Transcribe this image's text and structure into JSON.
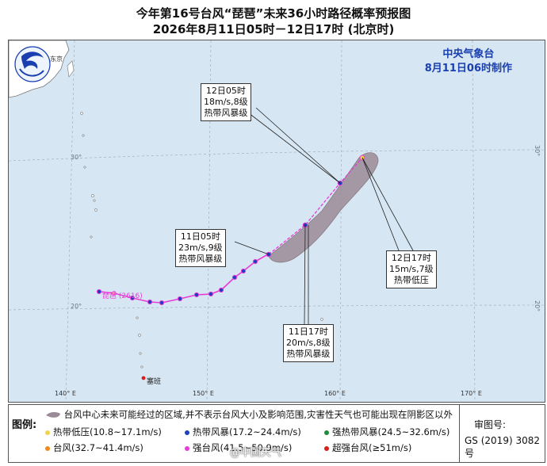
{
  "title_line1": "今年第16号台风“琵琶”未来36小时路径概率预报图",
  "title_line2": "2026年8月11日05时－12日17时 (北京时)",
  "agency_name": "中央气象台",
  "agency_time": "8月11日06时制作",
  "logo_label": "东京",
  "map_labels": {
    "typhoon_name": "琵琶 (2616)",
    "saipan": "塞班",
    "lat_30": "30°",
    "lat_20": "20°",
    "lon_140": "140° E",
    "lon_150": "150° E",
    "lon_160": "160° E",
    "lon_170": "170° E"
  },
  "callouts": {
    "c1205": {
      "time": "12日05时",
      "wind": "18m/s,8级",
      "level": "热带风暴级"
    },
    "c1105": {
      "time": "11日05时",
      "wind": "23m/s,9级",
      "level": "热带风暴级"
    },
    "c1117": {
      "time": "11日17时",
      "wind": "20m/s,8级",
      "level": "热带风暴级"
    },
    "c1217": {
      "time": "12日17时",
      "wind": "15m/s,7级",
      "level": "热带低压"
    }
  },
  "legend": {
    "title": "图例:",
    "cone_text": "台风中心未来可能经过的区域,并不表示台风大小及影响范围,灾害性天气也可能出现在阴影区以外",
    "items": [
      {
        "label": "热带低压(10.8~17.1m/s)",
        "color": "#f0d34a"
      },
      {
        "label": "热带风暴(17.2~24.4m/s)",
        "color": "#1f3fbf"
      },
      {
        "label": "强热带风暴(24.5~32.6m/s)",
        "color": "#1e8c3a"
      },
      {
        "label": "台风(32.7~41.4m/s)",
        "color": "#f08a1e"
      },
      {
        "label": "强台风(41.5~50.9m/s)",
        "color": "#e83bd8"
      },
      {
        "label": "超强台风(≥51m/s)",
        "color": "#d81e1e"
      }
    ],
    "review_label": "审图号:",
    "review_code": "GS (2019) 3082号"
  },
  "watermark": "@中国天气",
  "colors": {
    "ocean": "#d6e6f2",
    "land": "#ffffff",
    "cone": "#9b8a97",
    "track": "#e83bd8",
    "agency": "#1a3fb0"
  }
}
